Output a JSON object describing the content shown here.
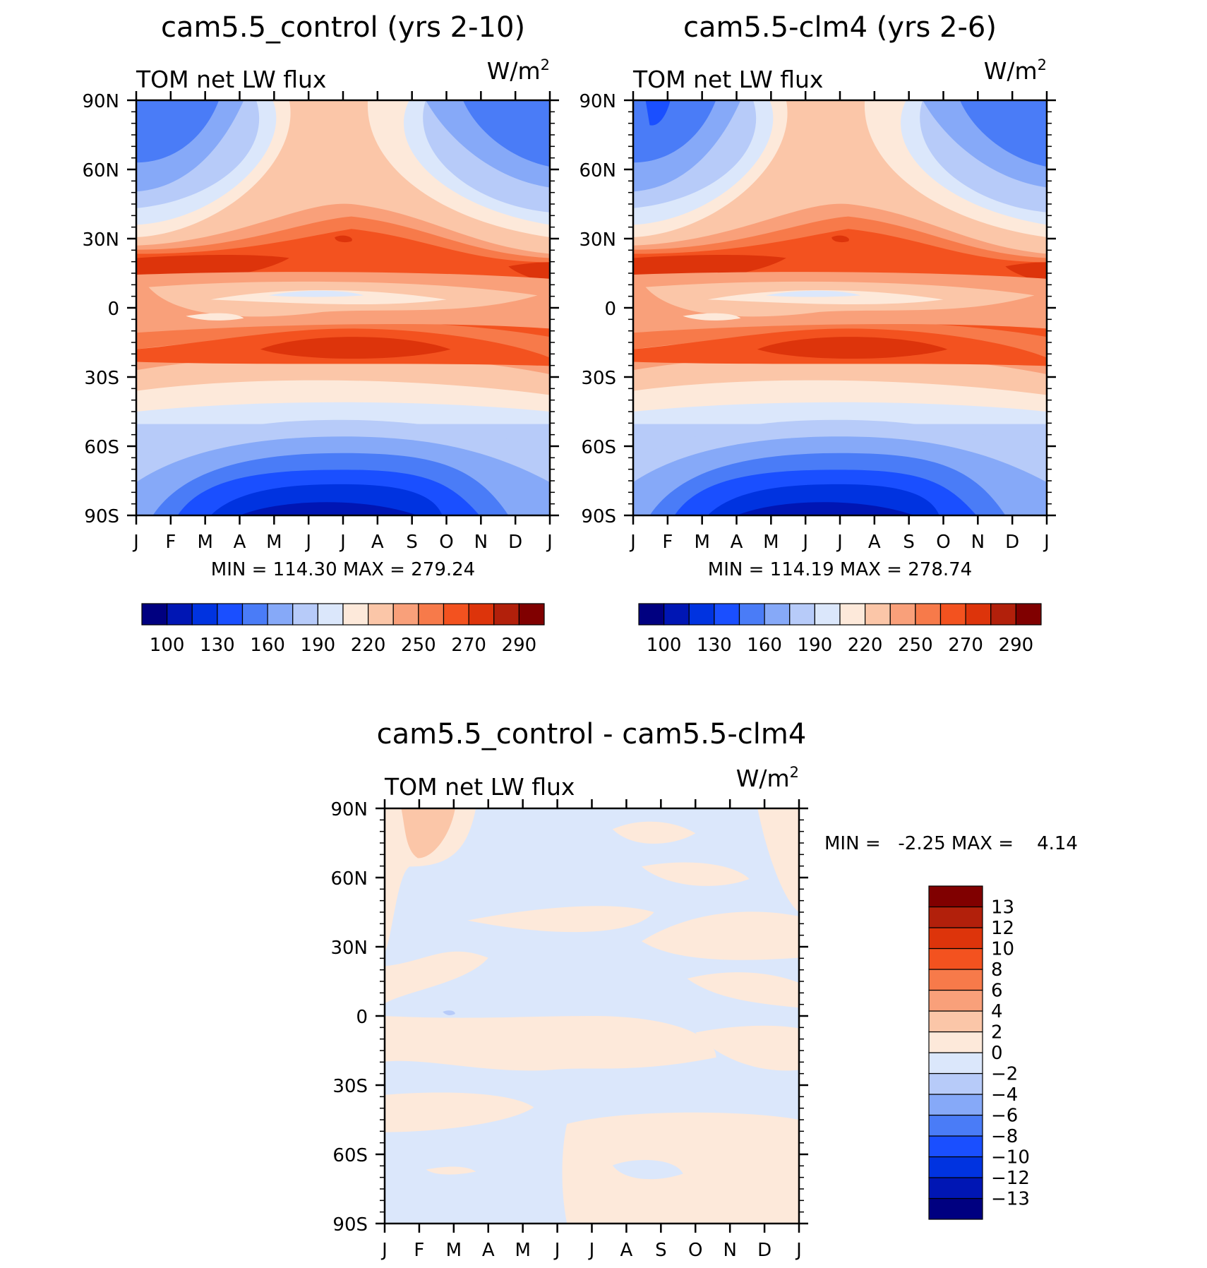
{
  "colors": {
    "abs_levels": [
      "#000080",
      "#0016b4",
      "#0033e0",
      "#1a4fff",
      "#4a7cf7",
      "#86a9f8",
      "#b7cbf9",
      "#dbe7fb",
      "#fde9da",
      "#fbc6a8",
      "#f9a07a",
      "#f77a4a",
      "#f3521f",
      "#dd340b",
      "#b2200b",
      "#800000"
    ],
    "diff_levels": [
      "#000080",
      "#0016b4",
      "#0033e0",
      "#1a4fff",
      "#4a7cf7",
      "#86a9f8",
      "#b7cbf9",
      "#dbe7fb",
      "#fde9da",
      "#fbc6a8",
      "#f9a07a",
      "#f77a4a",
      "#f3521f",
      "#dd340b",
      "#b2200b",
      "#800000"
    ]
  },
  "panels": [
    {
      "id": "control",
      "title": "cam5.5_control (yrs 2-10)",
      "left_label": "TOM net LW flux",
      "units": "W/m",
      "units_sup": "2",
      "stats": "MIN = 114.30 MAX = 279.24"
    },
    {
      "id": "clm4",
      "title": "cam5.5-clm4 (yrs 2-6)",
      "left_label": "TOM net LW flux",
      "units": "W/m",
      "units_sup": "2",
      "stats": "MIN = 114.19 MAX = 278.74"
    },
    {
      "id": "diff",
      "title": "cam5.5_control - cam5.5-clm4",
      "left_label": "TOM net LW flux",
      "units": "W/m",
      "units_sup": "2",
      "stats": "MIN =   -2.25 MAX =    4.14"
    }
  ],
  "colorbar_abs": {
    "labels": [
      "100",
      "130",
      "160",
      "190",
      "220",
      "250",
      "270",
      "290"
    ]
  },
  "colorbar_diff": {
    "labels": [
      "13",
      "12",
      "10",
      "8",
      "6",
      "4",
      "2",
      "0",
      "-2",
      "-4",
      "-6",
      "-8",
      "-10",
      "-12",
      "-13"
    ]
  },
  "chart_data": [
    {
      "type": "heatmap",
      "title": "cam5.5_control (yrs 2-10)",
      "variable": "TOM net LW flux",
      "units": "W/m2",
      "x": [
        "J",
        "F",
        "M",
        "A",
        "M",
        "J",
        "J",
        "A",
        "S",
        "O",
        "N",
        "D",
        "J"
      ],
      "y": [
        "90N",
        "60N",
        "30N",
        "0",
        "30S",
        "60S",
        "90S"
      ],
      "lat_values": [
        90,
        60,
        30,
        0,
        -30,
        -60,
        -90
      ],
      "xlabel": "",
      "ylabel": "",
      "min": 114.3,
      "max": 279.24,
      "contour_levels": [
        100,
        115,
        130,
        145,
        160,
        175,
        190,
        205,
        220,
        235,
        250,
        260,
        270,
        280,
        290
      ],
      "approx_zonal_mean_by_lat": {
        "90N": 175,
        "60N": 205,
        "30N": 255,
        "15N": 272,
        "5N": 230,
        "0": 245,
        "20S": 268,
        "40S": 240,
        "60S": 205,
        "75S": 165,
        "90S": 125
      }
    },
    {
      "type": "heatmap",
      "title": "cam5.5-clm4 (yrs 2-6)",
      "variable": "TOM net LW flux",
      "units": "W/m2",
      "x": [
        "J",
        "F",
        "M",
        "A",
        "M",
        "J",
        "J",
        "A",
        "S",
        "O",
        "N",
        "D",
        "J"
      ],
      "y": [
        "90N",
        "60N",
        "30N",
        "0",
        "30S",
        "60S",
        "90S"
      ],
      "lat_values": [
        90,
        60,
        30,
        0,
        -30,
        -60,
        -90
      ],
      "min": 114.19,
      "max": 278.74,
      "contour_levels": [
        100,
        115,
        130,
        145,
        160,
        175,
        190,
        205,
        220,
        235,
        250,
        260,
        270,
        280,
        290
      ],
      "approx_zonal_mean_by_lat": {
        "90N": 172,
        "60N": 205,
        "30N": 255,
        "15N": 272,
        "5N": 230,
        "0": 245,
        "20S": 268,
        "40S": 240,
        "60S": 205,
        "75S": 165,
        "90S": 124
      }
    },
    {
      "type": "heatmap",
      "title": "cam5.5_control - cam5.5-clm4",
      "variable": "TOM net LW flux",
      "units": "W/m2",
      "x": [
        "J",
        "F",
        "M",
        "A",
        "M",
        "J",
        "J",
        "A",
        "S",
        "O",
        "N",
        "D",
        "J"
      ],
      "y": [
        "90N",
        "60N",
        "30N",
        "0",
        "30S",
        "60S",
        "90S"
      ],
      "lat_values": [
        90,
        60,
        30,
        0,
        -30,
        -60,
        -90
      ],
      "min": -2.25,
      "max": 4.14,
      "contour_levels": [
        -13,
        -12,
        -10,
        -8,
        -6,
        -4,
        -2,
        0,
        2,
        4,
        6,
        8,
        10,
        12,
        13
      ],
      "description_values": "mostly between -2 and 2; positive (0 to 4) near 80N in January-February"
    }
  ]
}
